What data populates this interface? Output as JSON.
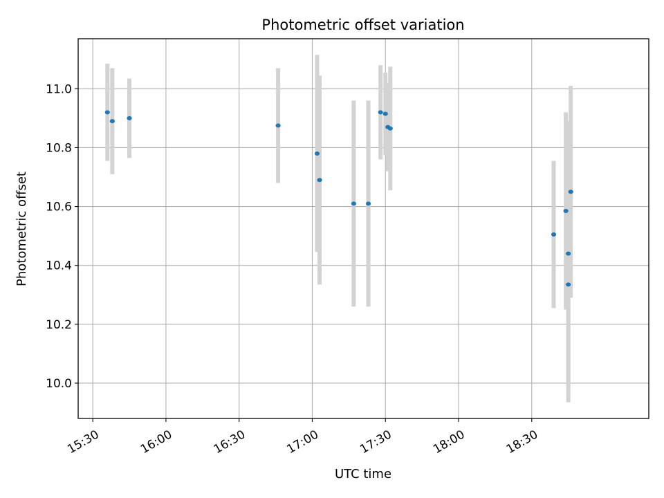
{
  "chart_data": {
    "type": "scatter",
    "title": "Photometric offset variation",
    "xlabel": "UTC time",
    "ylabel": "Photometric offset",
    "grid": true,
    "xlim": [
      "15:24",
      "19:18"
    ],
    "ylim": [
      9.88,
      11.17
    ],
    "x_ticks": [
      "15:30",
      "16:00",
      "16:30",
      "17:00",
      "17:30",
      "18:00",
      "18:30"
    ],
    "y_ticks": [
      10.0,
      10.2,
      10.4,
      10.6,
      10.8,
      11.0
    ],
    "y_tick_labels": [
      "10.0",
      "10.2",
      "10.4",
      "10.6",
      "10.8",
      "11.0"
    ],
    "colors": {
      "point": "#1f77b4",
      "errorbar": "#d3d3d3",
      "grid": "#b0b0b0"
    },
    "points": [
      {
        "time": "15:36",
        "value": 10.92,
        "err": 0.165
      },
      {
        "time": "15:38",
        "value": 10.89,
        "err": 0.18
      },
      {
        "time": "15:45",
        "value": 10.9,
        "err": 0.135
      },
      {
        "time": "16:46",
        "value": 10.875,
        "err": 0.195
      },
      {
        "time": "17:02",
        "value": 10.78,
        "err": 0.335
      },
      {
        "time": "17:03",
        "value": 10.69,
        "err": 0.355
      },
      {
        "time": "17:17",
        "value": 10.61,
        "err": 0.35
      },
      {
        "time": "17:23",
        "value": 10.61,
        "err": 0.35
      },
      {
        "time": "17:28",
        "value": 10.92,
        "err": 0.16
      },
      {
        "time": "17:30",
        "value": 10.915,
        "err": 0.14
      },
      {
        "time": "17:31",
        "value": 10.87,
        "err": 0.15
      },
      {
        "time": "17:32",
        "value": 10.865,
        "err": 0.21
      },
      {
        "time": "18:39",
        "value": 10.505,
        "err": 0.25
      },
      {
        "time": "18:44",
        "value": 10.585,
        "err": 0.335
      },
      {
        "time": "18:45",
        "value": 10.44,
        "err": 0.45
      },
      {
        "time": "18:45",
        "value": 10.335,
        "err": 0.4
      },
      {
        "time": "18:46",
        "value": 10.65,
        "err": 0.36
      }
    ]
  }
}
